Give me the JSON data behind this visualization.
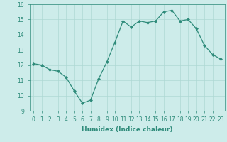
{
  "x": [
    0,
    1,
    2,
    3,
    4,
    5,
    6,
    7,
    8,
    9,
    10,
    11,
    12,
    13,
    14,
    15,
    16,
    17,
    18,
    19,
    20,
    21,
    22,
    23
  ],
  "y": [
    12.1,
    12.0,
    11.7,
    11.6,
    11.2,
    10.3,
    9.5,
    9.7,
    11.1,
    12.2,
    13.5,
    14.9,
    14.5,
    14.9,
    14.8,
    14.9,
    15.5,
    15.6,
    14.9,
    15.0,
    14.4,
    13.3,
    12.7,
    12.4
  ],
  "line_color": "#2e8b7a",
  "marker": "D",
  "marker_size": 2,
  "bg_color": "#cdecea",
  "grid_color": "#aed8d4",
  "xlabel": "Humidex (Indice chaleur)",
  "xlim": [
    -0.5,
    23.5
  ],
  "ylim": [
    9,
    16
  ],
  "yticks": [
    9,
    10,
    11,
    12,
    13,
    14,
    15,
    16
  ],
  "xticks": [
    0,
    1,
    2,
    3,
    4,
    5,
    6,
    7,
    8,
    9,
    10,
    11,
    12,
    13,
    14,
    15,
    16,
    17,
    18,
    19,
    20,
    21,
    22,
    23
  ],
  "tick_color": "#2e8b7a",
  "label_fontsize": 6.5,
  "tick_fontsize": 5.5,
  "line_width": 0.9
}
